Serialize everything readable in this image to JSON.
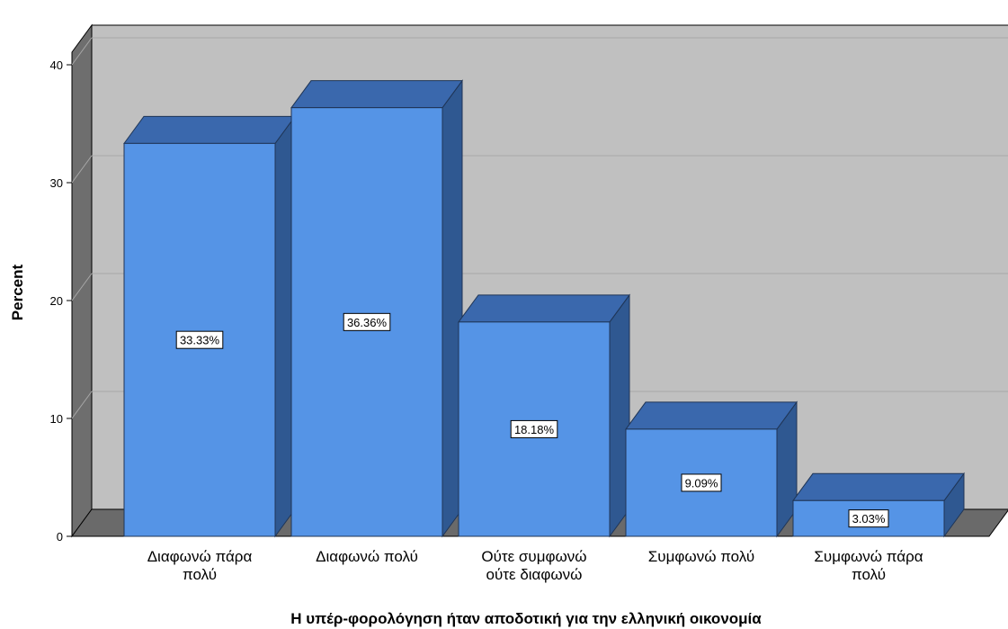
{
  "chart_data": {
    "type": "bar",
    "style": "3d",
    "categories": [
      "Διαφωνώ πάρα πολύ",
      "Διαφωνώ πολύ",
      "Ούτε συμφωνώ ούτε διαφωνώ",
      "Συμφωνώ πολύ",
      "Συμφωνώ πάρα πολύ"
    ],
    "category_label_lines": [
      [
        "Διαφωνώ πάρα",
        "πολύ"
      ],
      [
        "Διαφωνώ πολύ"
      ],
      [
        "Ούτε συμφωνώ",
        "ούτε διαφωνώ"
      ],
      [
        "Συμφωνώ πολύ"
      ],
      [
        "Συμφωνώ πάρα",
        "πολύ"
      ]
    ],
    "values": [
      33.33,
      36.36,
      18.18,
      9.09,
      3.03
    ],
    "data_labels": [
      "33.33%",
      "36.36%",
      "18.18%",
      "9.09%",
      "3.03%"
    ],
    "xlabel": "Η υπέρ-φορολόγηση ήταν αποδοτική για την ελληνική οικονομία",
    "ylabel": "Percent",
    "ylim": [
      0,
      40
    ],
    "yticks": [
      0,
      10,
      20,
      30,
      40
    ],
    "ytick_labels": [
      "0",
      "10",
      "20",
      "30",
      "40"
    ],
    "grid": true,
    "legend": "none",
    "colors": {
      "bar_front": "#5594e6",
      "bar_top": "#3a68ad",
      "bar_side": "#2f5891",
      "bar_outline": "#1f3556",
      "back_wall": "#c0c0c0",
      "side_wall": "#6e6e6e",
      "floor": "#6a6a6a",
      "gridline": "#a8a8a8"
    }
  }
}
